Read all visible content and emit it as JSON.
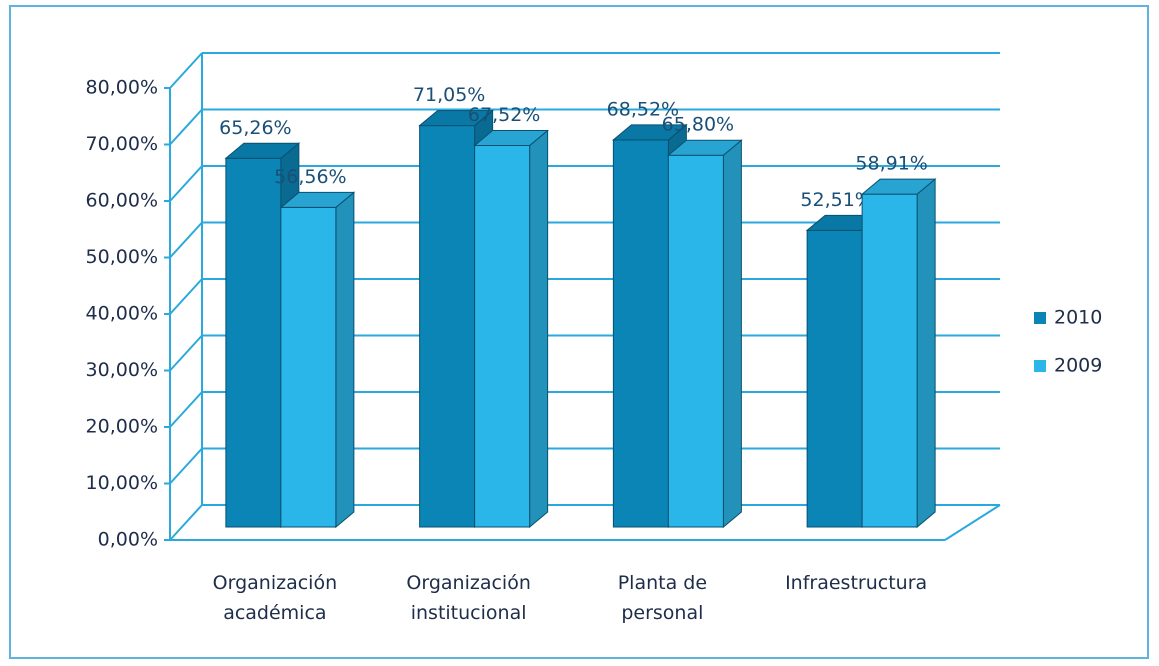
{
  "chart_data": {
    "type": "bar3d",
    "categories": [
      "Organización\nacadémica",
      "Organización\ninstitucional",
      "Planta de\npersonal",
      "Infraestructura"
    ],
    "series": [
      {
        "name": "2010",
        "color": "#0b85b6",
        "values": [
          65.26,
          71.05,
          68.52,
          52.51
        ],
        "value_labels": [
          "65,26%",
          "71,05%",
          "68,52%",
          "52,51%"
        ]
      },
      {
        "name": "2009",
        "color": "#2bb6e9",
        "values": [
          56.56,
          67.52,
          65.8,
          58.91
        ],
        "value_labels": [
          "56,56%",
          "67,52%",
          "65,80%",
          "58,91%"
        ]
      }
    ],
    "ylim": [
      0,
      80
    ],
    "yticks": [
      {
        "value": 0,
        "label": "0,00%"
      },
      {
        "value": 10,
        "label": "10,00%"
      },
      {
        "value": 20,
        "label": "20,00%"
      },
      {
        "value": 30,
        "label": "30,00%"
      },
      {
        "value": 40,
        "label": "40,00%"
      },
      {
        "value": 50,
        "label": "50,00%"
      },
      {
        "value": 60,
        "label": "60,00%"
      },
      {
        "value": 70,
        "label": "70,00%"
      },
      {
        "value": 80,
        "label": "80,00%"
      }
    ],
    "grid": true,
    "legend": "right"
  }
}
